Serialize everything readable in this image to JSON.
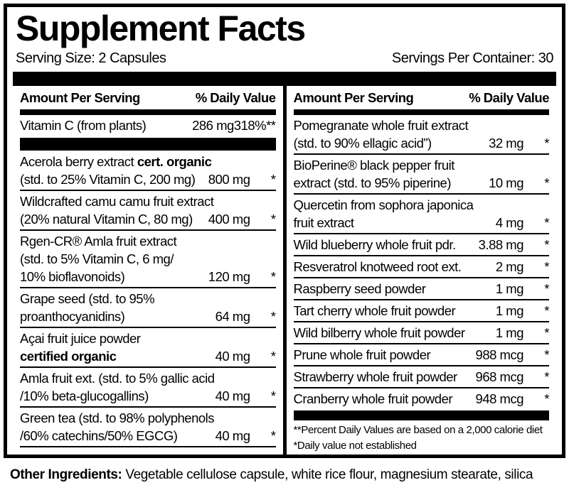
{
  "title": "Supplement Facts",
  "serving_size": "Serving Size: 2 Capsules",
  "servings_per_container": "Servings Per Container: 30",
  "headers": {
    "amount": "Amount Per Serving",
    "daily_value": "% Daily Value"
  },
  "left": {
    "vitamin_c": {
      "name": "Vitamin C (from plants)",
      "amount": "286 mg",
      "dv": "318%**"
    },
    "rows": [
      {
        "l1": "Acerola berry extract ",
        "l1b": "cert. organic",
        "name": "(std. to 25% Vitamin C, 200 mg)",
        "amount": "800 mg",
        "dv": "*"
      },
      {
        "l1": "Wildcrafted camu camu fruit extract",
        "name": "(20% natural Vitamin C, 80 mg)",
        "amount": "400 mg",
        "dv": "*"
      },
      {
        "l1": "Rgen-CR® Amla fruit extract",
        "l2": "(std. to 5% Vitamin C, 6 mg/",
        "name": "10% bioflavonoids)",
        "amount": "120 mg",
        "dv": "*"
      },
      {
        "l1": "Grape seed (std. to 95%",
        "name": "proanthocyanidins)",
        "amount": "64 mg",
        "dv": "*"
      },
      {
        "l1": "Açai fruit juice powder",
        "name_bold": "certified organic",
        "amount": "40 mg",
        "dv": "*"
      },
      {
        "l1": "Amla fruit ext. (std. to 5% gallic acid",
        "name": "/10% beta-glucogallins)",
        "amount": "40 mg",
        "dv": "*"
      },
      {
        "l1": "Green tea (std. to 98% polyphenols",
        "name": "/60% catechins/50% EGCG)",
        "amount": "40 mg",
        "dv": "*"
      }
    ]
  },
  "right": {
    "rows": [
      {
        "l1": "Pomegranate whole fruit extract",
        "name": "(std. to 90% ellagic acid”)",
        "amount": "32 mg",
        "dv": "*"
      },
      {
        "l1": "BioPerine® black pepper fruit",
        "name": "extract (std. to 95% piperine)",
        "amount": "10 mg",
        "dv": "*"
      },
      {
        "l1": "Quercetin from sophora japonica",
        "name": "fruit extract",
        "amount": "4 mg",
        "dv": "*"
      },
      {
        "name": "Wild blueberry whole fruit pdr.",
        "amount": "3.88 mg",
        "dv": "*"
      },
      {
        "name": "Resveratrol knotweed root ext.",
        "amount": "2 mg",
        "dv": "*"
      },
      {
        "name": "Raspberry seed powder",
        "amount": "1 mg",
        "dv": "*"
      },
      {
        "name": "Tart cherry whole fruit powder",
        "amount": "1 mg",
        "dv": "*"
      },
      {
        "name": "Wild bilberry whole fruit powder",
        "amount": "1 mg",
        "dv": "*"
      },
      {
        "name": "Prune whole fruit powder",
        "amount": "988 mcg",
        "dv": "*"
      },
      {
        "name": "Strawberry whole fruit powder",
        "amount": "968 mcg",
        "dv": "*"
      },
      {
        "name": "Cranberry whole fruit powder",
        "amount": "948 mcg",
        "dv": "*"
      }
    ],
    "footnotes": [
      "**Percent Daily Values are based on a 2,000 calorie diet",
      "*Daily value not established"
    ]
  },
  "other": {
    "label": "Other Ingredients:",
    "text": " Vegetable cellulose capsule, white rice flour, magnesium stearate, silica"
  },
  "colors": {
    "ink": "#000000",
    "background": "#ffffff"
  }
}
